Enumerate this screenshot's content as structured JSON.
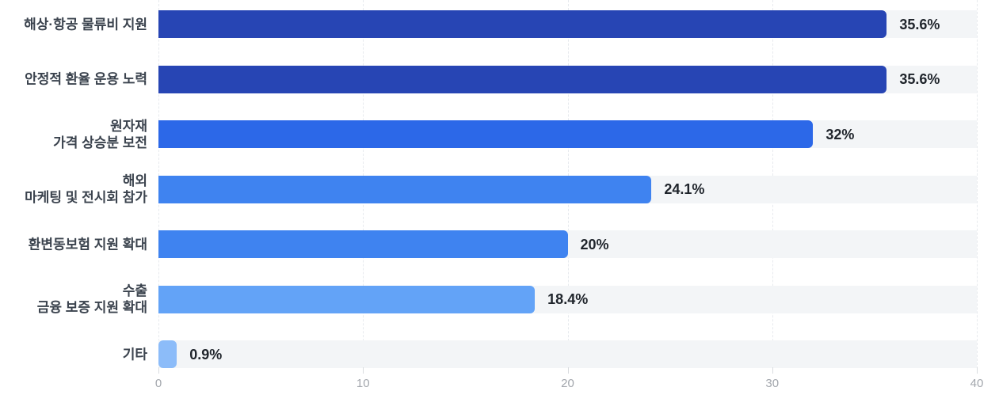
{
  "chart_data": {
    "type": "bar",
    "orientation": "horizontal",
    "title": "",
    "xlabel": "",
    "ylabel": "",
    "categories": [
      "해상·항공 물류비 지원",
      "안정적 환율 운용 노력",
      "원자재\n가격 상승분 보전",
      "해외\n마케팅 및 전시회 참가",
      "환변동보험 지원 확대",
      "수출\n금융 보증 지원 확대",
      "기타"
    ],
    "values": [
      35.6,
      35.6,
      32,
      24.1,
      20,
      18.4,
      0.9
    ],
    "value_labels": [
      "35.6%",
      "35.6%",
      "32%",
      "24.1%",
      "20%",
      "18.4%",
      "0.9%"
    ],
    "bar_colors": [
      "#2745b4",
      "#2745b4",
      "#2c68e8",
      "#3f83f0",
      "#3f83f0",
      "#63a3f7",
      "#8cbcf9"
    ],
    "xlim": [
      0,
      40
    ],
    "x_ticks": [
      0,
      10,
      20,
      30,
      40
    ],
    "x_tick_labels": [
      "0",
      "10",
      "20",
      "30",
      "40"
    ],
    "grid": "vertical-dashed",
    "legend": "none",
    "track_color": "#f3f5f7",
    "axis_label_color": "#a3a7ad",
    "category_label_color": "#3b434e",
    "value_label_color": "#1f242b"
  }
}
